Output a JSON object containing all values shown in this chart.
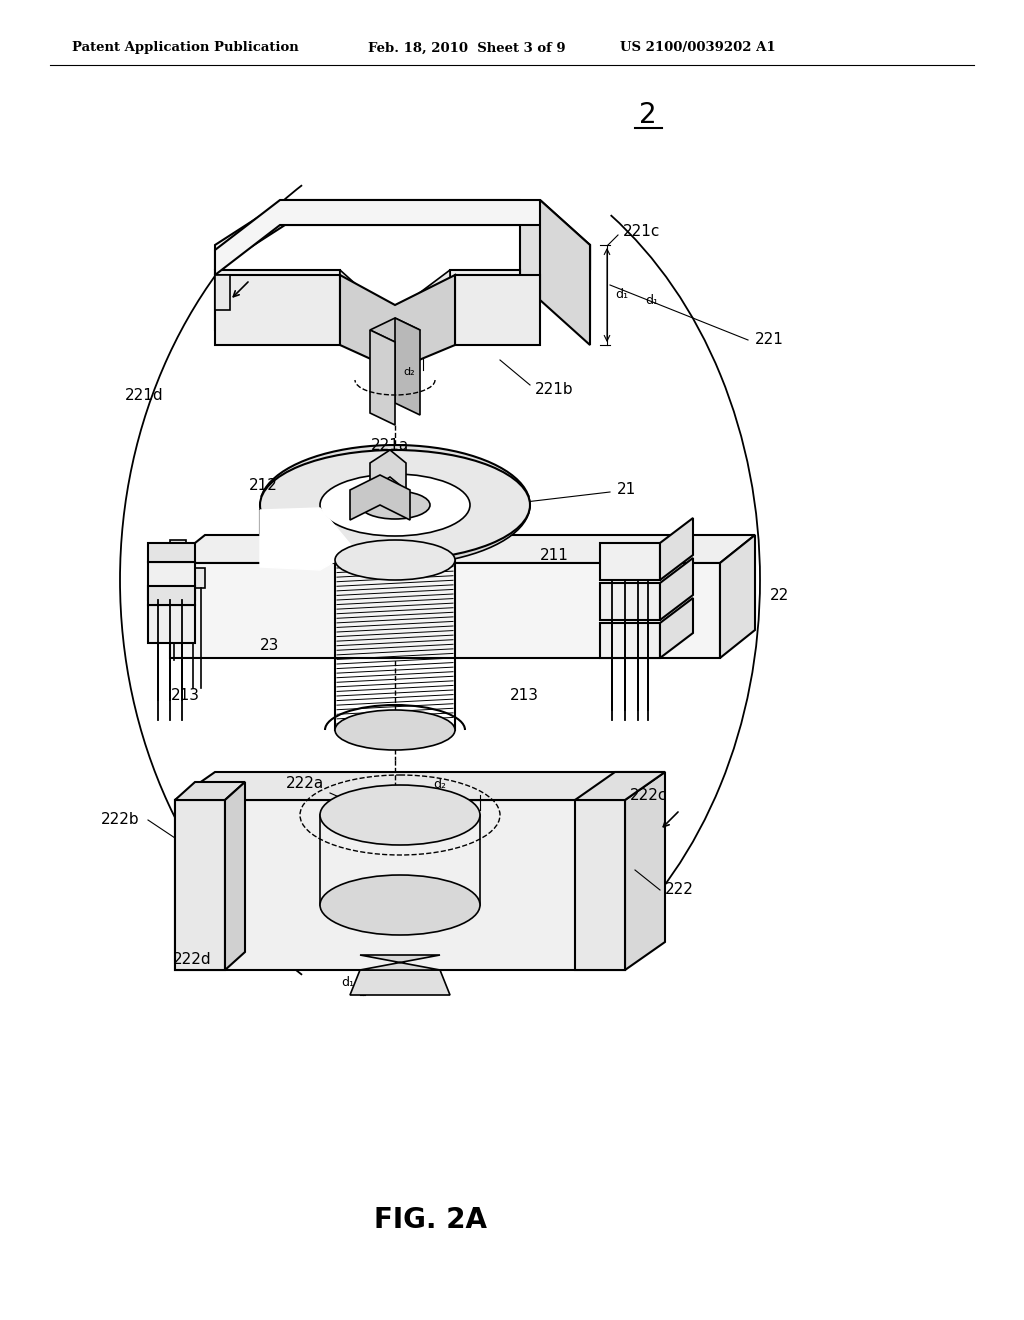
{
  "bg_color": "#ffffff",
  "line_color": "#000000",
  "header_left": "Patent Application Publication",
  "header_mid": "Feb. 18, 2010  Sheet 3 of 9",
  "header_right": "US 2100/0039202 A1",
  "fig_label": "FIG. 2A"
}
